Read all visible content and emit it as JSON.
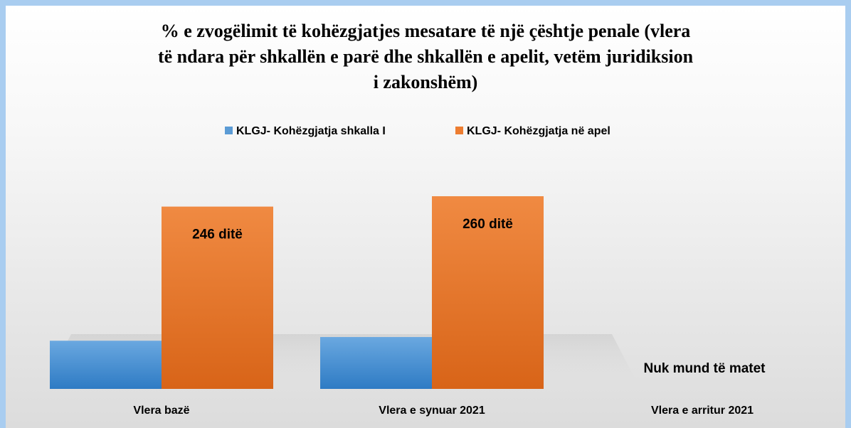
{
  "chart_data": {
    "type": "bar",
    "title": "% e zvogëlimit të kohëzgjatjes mesatare të një çështje penale (vlera\ntë ndara për shkallën e parë dhe shkallën e apelit, vetëm juridiksion\ni zakonshëm)",
    "categories": [
      "Vlera bazë",
      "Vlera e synuar 2021",
      "Vlera e arritur 2021"
    ],
    "series": [
      {
        "name": "KLGJ- Kohëzgjatja shkalla I",
        "color": "#5b9bd5",
        "values": [
          65,
          70,
          null
        ]
      },
      {
        "name": "KLGJ- Kohëzgjatja në apel",
        "color": "#ed7d31",
        "values": [
          246,
          260,
          null
        ],
        "value_labels": [
          "246 ditë",
          "260 ditë",
          null
        ]
      }
    ],
    "annotation": "Nuk mund të matet",
    "legend": "top"
  }
}
